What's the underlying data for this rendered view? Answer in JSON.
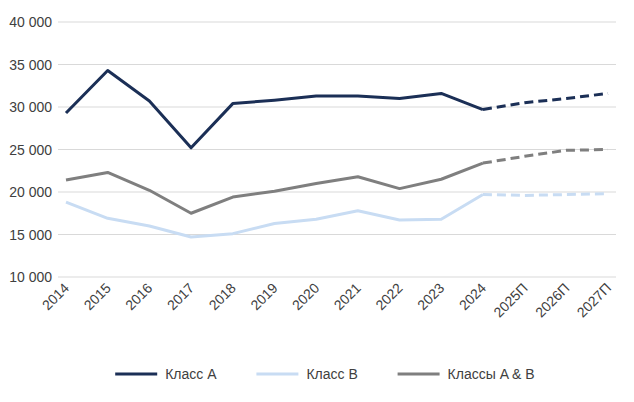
{
  "chart_data": {
    "type": "line",
    "categories": [
      "2014",
      "2015",
      "2016",
      "2017",
      "2018",
      "2019",
      "2020",
      "2021",
      "2022",
      "2023",
      "2024",
      "2025П",
      "2026П",
      "2027П"
    ],
    "series": [
      {
        "name": "Класс A",
        "color": "#1b2f56",
        "line_style": "solid",
        "values": [
          29300,
          34300,
          30700,
          25200,
          30400,
          30800,
          31300,
          31300,
          31000,
          31600,
          29700,
          null,
          null,
          null
        ]
      },
      {
        "name": "Класс B",
        "color": "#c8dcf3",
        "line_style": "solid",
        "values": [
          18800,
          16900,
          16000,
          14700,
          15100,
          16300,
          16800,
          17800,
          16700,
          16800,
          19700,
          null,
          null,
          null
        ]
      },
      {
        "name": "Классы A & B",
        "color": "#7f7f7f",
        "line_style": "solid",
        "values": [
          21400,
          22300,
          20200,
          17500,
          19400,
          20100,
          21000,
          21800,
          20400,
          21500,
          23400,
          null,
          null,
          null
        ]
      },
      {
        "color": "#1b2f56",
        "line_style": "dashed",
        "values": [
          null,
          null,
          null,
          null,
          null,
          null,
          null,
          null,
          null,
          null,
          29700,
          30500,
          31000,
          31600
        ]
      },
      {
        "color": "#c8dcf3",
        "line_style": "dashed",
        "values": [
          null,
          null,
          null,
          null,
          null,
          null,
          null,
          null,
          null,
          null,
          19700,
          19600,
          19700,
          19800
        ]
      },
      {
        "color": "#7f7f7f",
        "line_style": "dashed",
        "values": [
          null,
          null,
          null,
          null,
          null,
          null,
          null,
          null,
          null,
          null,
          23400,
          24200,
          24900,
          25000
        ]
      }
    ],
    "ylim": [
      10000,
      40000
    ],
    "yticks": [
      {
        "value": 10000,
        "label": "10 000"
      },
      {
        "value": 15000,
        "label": "15 000"
      },
      {
        "value": 20000,
        "label": "20 000"
      },
      {
        "value": 25000,
        "label": "25 000"
      },
      {
        "value": 30000,
        "label": "30 000"
      },
      {
        "value": 35000,
        "label": "35 000"
      },
      {
        "value": 40000,
        "label": "40 000"
      }
    ],
    "grid": true,
    "legend": "bottom"
  }
}
